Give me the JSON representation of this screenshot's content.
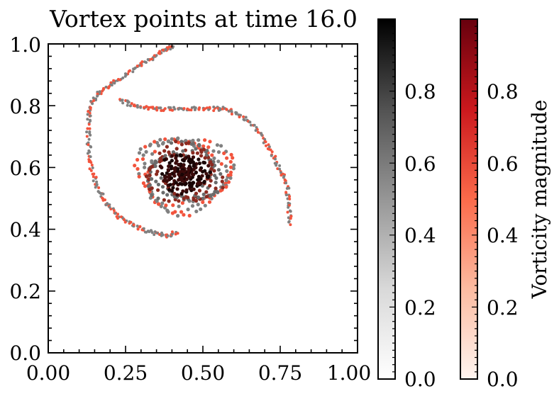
{
  "chart_data": {
    "type": "scatter",
    "title": "Vortex points at time 16.0",
    "xlabel": "",
    "ylabel": "",
    "xlim": [
      0.0,
      1.0
    ],
    "ylim": [
      0.0,
      1.0
    ],
    "x_ticks": [
      "0.00",
      "0.25",
      "0.50",
      "0.75",
      "1.00"
    ],
    "y_ticks": [
      "0.0",
      "0.2",
      "0.4",
      "0.6",
      "0.8",
      "1.0"
    ],
    "x_tick_values": [
      0.0,
      0.25,
      0.5,
      0.75,
      1.0
    ],
    "y_tick_values": [
      0.0,
      0.2,
      0.4,
      0.6,
      0.8,
      1.0
    ],
    "grid": false,
    "description_structure": {
      "spiral_arms": [
        {
          "name": "left-arm",
          "points": [
            [
              0.4,
              0.99
            ],
            [
              0.37,
              0.98
            ],
            [
              0.33,
              0.95
            ],
            [
              0.28,
              0.92
            ],
            [
              0.22,
              0.88
            ],
            [
              0.17,
              0.85
            ],
            [
              0.14,
              0.81
            ],
            [
              0.13,
              0.76
            ],
            [
              0.13,
              0.68
            ],
            [
              0.14,
              0.6
            ],
            [
              0.16,
              0.53
            ],
            [
              0.19,
              0.48
            ],
            [
              0.23,
              0.44
            ],
            [
              0.28,
              0.41
            ],
            [
              0.33,
              0.39
            ],
            [
              0.38,
              0.38
            ],
            [
              0.42,
              0.39
            ]
          ]
        },
        {
          "name": "right-arm",
          "points": [
            [
              0.23,
              0.82
            ],
            [
              0.28,
              0.8
            ],
            [
              0.34,
              0.79
            ],
            [
              0.4,
              0.79
            ],
            [
              0.46,
              0.79
            ],
            [
              0.52,
              0.79
            ],
            [
              0.57,
              0.79
            ],
            [
              0.62,
              0.77
            ],
            [
              0.67,
              0.73
            ],
            [
              0.71,
              0.67
            ],
            [
              0.74,
              0.61
            ],
            [
              0.77,
              0.55
            ],
            [
              0.78,
              0.48
            ],
            [
              0.78,
              0.41
            ]
          ]
        }
      ],
      "core": {
        "cx": 0.44,
        "cy": 0.58,
        "rx": 0.15,
        "ry": 0.12
      }
    },
    "series": [
      {
        "name": "gray points",
        "colormap": "Greys",
        "color": "#7f7f7f"
      },
      {
        "name": "red points",
        "colormap": "Reds",
        "color": "#f2543d"
      }
    ],
    "colorbars": [
      {
        "name": "greys-colorbar",
        "colormap": "Greys",
        "range": [
          0.0,
          1.0
        ],
        "ticks": [
          "0.0",
          "0.2",
          "0.4",
          "0.6",
          "0.8"
        ],
        "label": ""
      },
      {
        "name": "reds-colorbar",
        "colormap": "Reds",
        "range": [
          0.0,
          1.0
        ],
        "ticks": [
          "0.0",
          "0.2",
          "0.4",
          "0.6",
          "0.8"
        ],
        "label": "Vorticity magnitude"
      }
    ]
  },
  "colors": {
    "axis": "#000000",
    "gray_point": "#808080",
    "red_point": "#f2543d",
    "dark_core": "#3a0a0a",
    "greys_top": "#000000",
    "greys_bottom": "#ffffff",
    "reds_top": "#67000d",
    "reds_mid": "#ef3b2c",
    "reds_low": "#fc9272",
    "reds_bottom": "#fff5f0"
  }
}
